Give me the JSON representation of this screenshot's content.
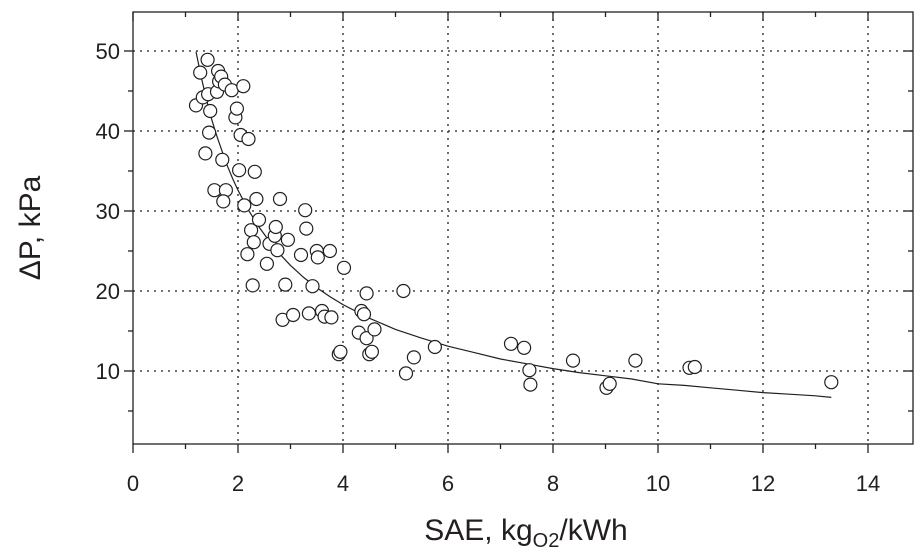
{
  "chart_data": {
    "type": "scatter",
    "title": "",
    "xlabel": {
      "main": "SAE, kg",
      "subscript": "O2",
      "suffix": "/kWh"
    },
    "ylabel": "ΔP, kPa",
    "xlim": [
      0,
      15
    ],
    "ylim": [
      0,
      55
    ],
    "x_ticks": [
      0,
      2,
      4,
      6,
      8,
      10,
      12,
      14
    ],
    "y_ticks": [
      10,
      20,
      30,
      40,
      50
    ],
    "grid": "dotted",
    "x": [
      1.2,
      1.28,
      1.33,
      1.42,
      1.43,
      1.38,
      1.45,
      1.47,
      1.55,
      1.6,
      1.62,
      1.64,
      1.68,
      1.75,
      1.7,
      1.77,
      1.72,
      1.88,
      1.95,
      1.98,
      2.05,
      2.1,
      2.02,
      2.12,
      2.2,
      2.18,
      2.25,
      2.32,
      2.3,
      2.35,
      2.28,
      2.4,
      2.55,
      2.6,
      2.7,
      2.72,
      2.75,
      2.8,
      2.85,
      2.9,
      2.95,
      3.05,
      3.2,
      3.28,
      3.3,
      3.35,
      3.42,
      3.5,
      3.52,
      3.6,
      3.65,
      3.75,
      3.78,
      3.92,
      3.95,
      4.02,
      4.3,
      4.35,
      4.4,
      4.45,
      4.45,
      4.5,
      4.55,
      4.6,
      5.15,
      5.2,
      5.35,
      5.75,
      7.2,
      7.45,
      7.55,
      7.57,
      8.38,
      9.02,
      9.08,
      9.57,
      10.6,
      10.7,
      13.3
    ],
    "y": [
      43.2,
      47.3,
      44.2,
      48.9,
      44.6,
      37.2,
      39.8,
      42.5,
      32.6,
      44.9,
      47.5,
      46.2,
      46.8,
      45.8,
      36.4,
      32.6,
      31.2,
      45.1,
      41.7,
      42.8,
      39.5,
      45.6,
      35.1,
      30.7,
      39.0,
      24.6,
      27.6,
      34.9,
      26.1,
      31.5,
      20.7,
      28.9,
      23.4,
      25.9,
      26.9,
      28.0,
      25.1,
      31.5,
      16.4,
      20.8,
      26.4,
      17.0,
      24.5,
      30.1,
      27.8,
      17.2,
      20.6,
      25.0,
      24.2,
      17.5,
      16.8,
      25.0,
      16.7,
      12.1,
      12.4,
      22.9,
      14.8,
      17.5,
      17.1,
      14.1,
      19.7,
      12.1,
      12.4,
      15.2,
      20.0,
      9.7,
      11.7,
      13.0,
      13.4,
      12.9,
      10.1,
      8.3,
      11.3,
      7.9,
      8.4,
      11.3,
      10.4,
      10.5,
      8.6
    ],
    "fit_curve": {
      "type": "power",
      "formula": "y = 57.5 * x^-0.837",
      "x": [
        1.2,
        1.3,
        1.4,
        1.5,
        1.6,
        1.7,
        1.8,
        1.9,
        2.0,
        2.2,
        2.4,
        2.6,
        2.8,
        3.0,
        3.25,
        3.5,
        3.75,
        4.0,
        4.5,
        5.0,
        5.5,
        6.0,
        6.5,
        7.0,
        7.5,
        8.0,
        8.5,
        9.0,
        9.5,
        10.0,
        10.5,
        11.0,
        11.5,
        12.0,
        12.5,
        13.0,
        13.3
      ],
      "y": [
        49.9,
        46.7,
        43.9,
        41.4,
        39.3,
        37.4,
        35.6,
        34.0,
        32.6,
        30.1,
        28.0,
        26.2,
        24.6,
        23.2,
        21.7,
        20.4,
        19.3,
        18.3,
        16.6,
        15.2,
        14.1,
        13.1,
        12.3,
        11.5,
        10.9,
        10.3,
        9.8,
        9.4,
        9.0,
        8.4,
        8.2,
        7.9,
        7.6,
        7.3,
        7.1,
        6.9,
        6.7
      ]
    }
  }
}
